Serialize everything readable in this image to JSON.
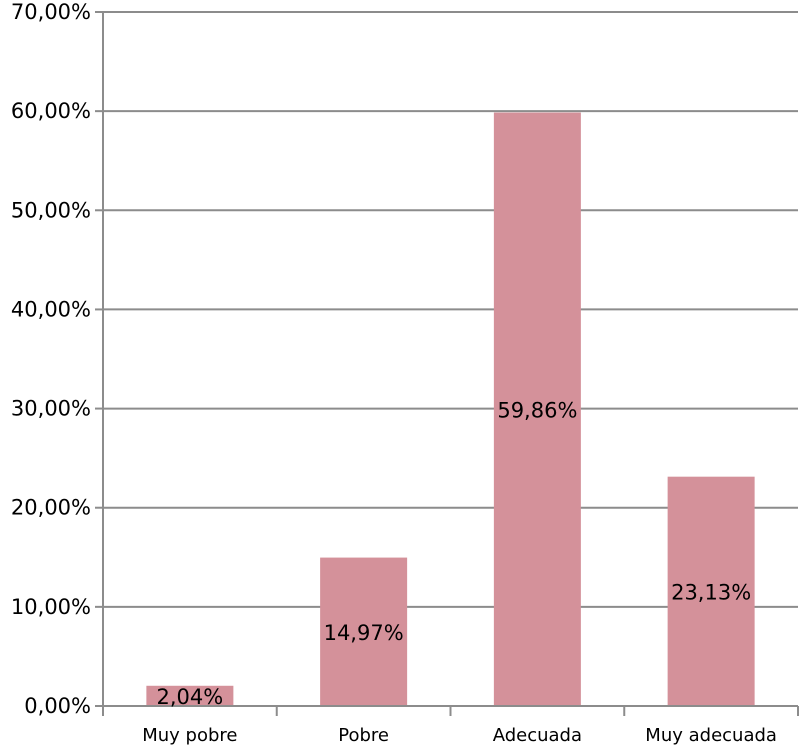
{
  "chart_data": {
    "type": "bar",
    "categories": [
      "Muy pobre",
      "Pobre",
      "Adecuada",
      "Muy adecuada"
    ],
    "values": [
      2.04,
      14.97,
      59.86,
      23.13
    ],
    "data_labels": [
      "2,04%",
      "14,97%",
      "59,86%",
      "23,13%"
    ],
    "ylim": [
      0,
      70
    ],
    "y_ticks": [
      0,
      10,
      20,
      30,
      40,
      50,
      60,
      70
    ],
    "y_tick_labels": [
      "0,00%",
      "10,00%",
      "20,00%",
      "30,00%",
      "40,00%",
      "50,00%",
      "60,00%",
      "70,00%"
    ],
    "title": "",
    "xlabel": "",
    "ylabel": "",
    "grid": true,
    "legend": false,
    "bar_color": "#d4919a",
    "grid_color": "#8c8c8c",
    "axis_color": "#8c8c8c"
  }
}
